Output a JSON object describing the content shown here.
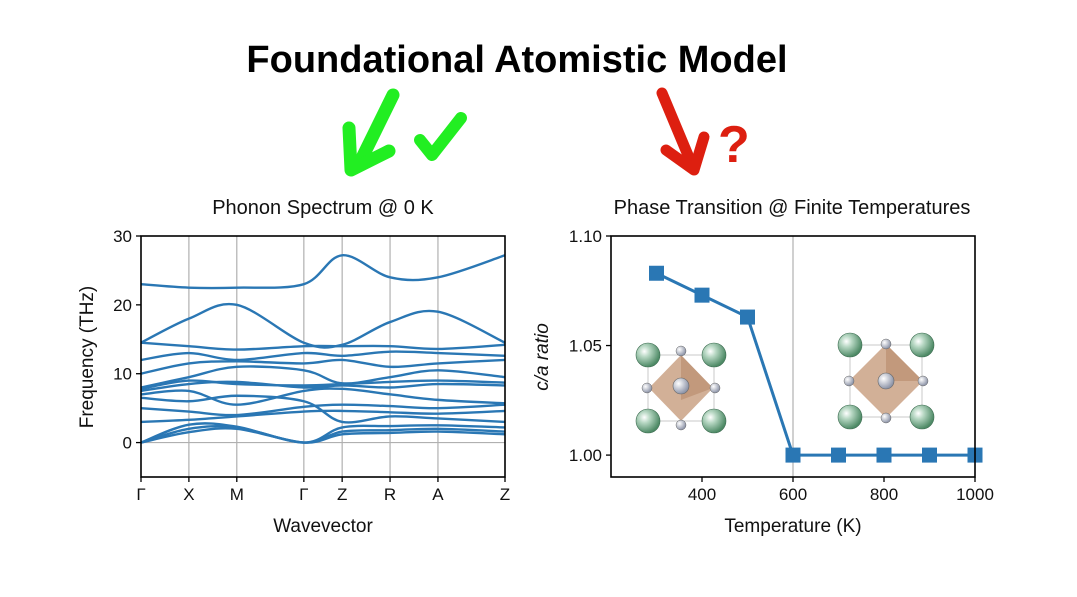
{
  "figure": {
    "title": "Foundational Atomistic Model",
    "colors": {
      "line": "#2a77b4",
      "check": "#22ee22",
      "question": "#dd1f10",
      "grid": "#b0b0b0"
    },
    "icons": [
      "green-arrow-icon",
      "green-check-icon",
      "red-arrow-icon",
      "question-mark-icon",
      "crystal-structure-icon"
    ]
  },
  "chart_data": [
    {
      "type": "line",
      "title": "Phonon Spectrum @ 0 K",
      "xlabel": "Wavevector",
      "ylabel": "Frequency (THz)",
      "ylim": [
        -5,
        30
      ],
      "yticks": [
        0,
        10,
        20,
        30
      ],
      "grid": "vertical lines at high-symmetry points",
      "high_symmetry_points": [
        {
          "label": "Γ",
          "x": 0
        },
        {
          "label": "X",
          "x": 1
        },
        {
          "label": "M",
          "x": 2
        },
        {
          "label": "Γ",
          "x": 3.4
        },
        {
          "label": "Z",
          "x": 4.2
        },
        {
          "label": "R",
          "x": 5.2
        },
        {
          "label": "A",
          "x": 6.2
        },
        {
          "label": "Z",
          "x": 7.6
        }
      ],
      "series": [
        {
          "values": [
            0,
            1.5,
            2.0,
            0,
            1.2,
            1.4,
            1.6,
            1.2
          ]
        },
        {
          "values": [
            0,
            2.0,
            2.2,
            0,
            1.6,
            1.8,
            2.0,
            1.6
          ]
        },
        {
          "values": [
            0,
            2.6,
            2.3,
            0,
            2.2,
            2.4,
            2.5,
            2.2
          ]
        },
        {
          "values": [
            3.0,
            3.3,
            3.8,
            4.5,
            4.6,
            4.4,
            4.2,
            4.6
          ]
        },
        {
          "values": [
            5.0,
            4.5,
            4.0,
            5.2,
            5.5,
            5.3,
            5.0,
            5.5
          ]
        },
        {
          "values": [
            6.5,
            6.0,
            6.8,
            6.0,
            3.0,
            3.8,
            3.5,
            3.0
          ]
        },
        {
          "values": [
            7.0,
            7.5,
            5.5,
            7.5,
            7.8,
            7.0,
            6.2,
            5.7
          ]
        },
        {
          "values": [
            7.5,
            8.5,
            8.8,
            8.0,
            8.3,
            8.0,
            8.5,
            8.3
          ]
        },
        {
          "values": [
            7.8,
            9.0,
            8.5,
            8.3,
            8.5,
            8.8,
            9.0,
            8.7
          ]
        },
        {
          "values": [
            8.0,
            9.5,
            11.0,
            10.5,
            8.6,
            9.5,
            10.5,
            9.5
          ]
        },
        {
          "values": [
            10.0,
            11.5,
            11.8,
            11.5,
            12.0,
            11.0,
            11.5,
            12.0
          ]
        },
        {
          "values": [
            12.0,
            13.0,
            12.0,
            13.0,
            12.6,
            13.2,
            13.0,
            12.6
          ]
        },
        {
          "values": [
            14.5,
            14.0,
            13.5,
            14.0,
            14.0,
            14.0,
            13.6,
            14.2
          ]
        },
        {
          "values": [
            14.5,
            18.0,
            20.0,
            14.5,
            14.2,
            17.5,
            19.0,
            14.5
          ]
        },
        {
          "values": [
            23.0,
            22.5,
            22.5,
            23.0,
            27.2,
            24.0,
            24.0,
            27.2
          ]
        }
      ]
    },
    {
      "type": "line",
      "title": "Phase Transition @ Finite Temperatures",
      "xlabel": "Temperature (K)",
      "ylabel": "c/a ratio",
      "xlim": [
        200,
        1000
      ],
      "ylim": [
        0.99,
        1.1
      ],
      "xticks": [
        400,
        600,
        800,
        1000
      ],
      "yticks": [
        1.0,
        1.05,
        1.1
      ],
      "marker": "square",
      "transition_line_x": 600,
      "series": [
        {
          "x": [
            300,
            400,
            500,
            600,
            700,
            800,
            900,
            1000
          ],
          "values": [
            1.083,
            1.073,
            1.063,
            1.0,
            1.0,
            1.0,
            1.0,
            1.0
          ]
        }
      ]
    }
  ]
}
